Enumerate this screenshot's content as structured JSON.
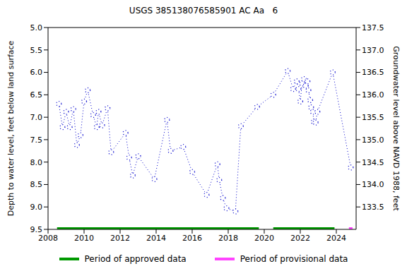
{
  "chart_data": {
    "type": "line",
    "title": "USGS 385138076585901 AC Aa   6",
    "ylabel": "Depth to water level, feet below land surface",
    "y2label": "Groundwater level above NAVD 1988, feet",
    "color": "#0000cc",
    "marker": "circle",
    "line_style": "dotted",
    "x": [
      2008.6,
      2008.8,
      2009.0,
      2009.2,
      2009.4,
      2009.6,
      2009.8,
      2010.0,
      2010.2,
      2010.5,
      2010.7,
      2010.8,
      2011.0,
      2011.3,
      2011.5,
      2012.3,
      2012.5,
      2012.7,
      2013.0,
      2013.9,
      2014.6,
      2014.8,
      2015.5,
      2016.0,
      2016.8,
      2017.4,
      2017.5,
      2017.7,
      2017.9,
      2018.4,
      2018.7,
      2019.6,
      2020.5,
      2021.3,
      2021.6,
      2021.8,
      2021.9,
      2022.0,
      2022.1,
      2022.2,
      2022.3,
      2022.4,
      2022.45,
      2022.55,
      2022.6,
      2022.7,
      2022.75,
      2022.85,
      2022.95,
      2023.8,
      2024.8
    ],
    "values": [
      6.7,
      7.22,
      6.88,
      7.22,
      6.82,
      7.62,
      7.4,
      6.65,
      6.4,
      6.95,
      7.22,
      6.88,
      7.18,
      6.8,
      7.78,
      7.35,
      7.9,
      8.3,
      7.87,
      8.38,
      7.06,
      7.75,
      7.66,
      8.22,
      8.73,
      8.05,
      8.4,
      8.8,
      9.03,
      9.1,
      7.2,
      6.77,
      6.5,
      5.97,
      6.37,
      6.2,
      6.37,
      6.65,
      6.25,
      6.15,
      6.3,
      6.2,
      6.4,
      6.62,
      6.78,
      6.88,
      7.1,
      7.12,
      6.88,
      6.0,
      8.12
    ],
    "xlim": [
      2008,
      2025.1
    ],
    "xticks": [
      2008,
      2010,
      2012,
      2014,
      2016,
      2018,
      2020,
      2022,
      2024
    ],
    "ylim": [
      5.0,
      9.5
    ],
    "yticks": [
      {
        "value": 5,
        "label": "5.0"
      },
      {
        "value": 5.5,
        "label": "5.5"
      },
      {
        "value": 6,
        "label": "6.0"
      },
      {
        "value": 6.5,
        "label": "6.5"
      },
      {
        "value": 7,
        "label": "7.0"
      },
      {
        "value": 7.5,
        "label": "7.5"
      },
      {
        "value": 8,
        "label": "8.0"
      },
      {
        "value": 8.5,
        "label": "8.5"
      },
      {
        "value": 9,
        "label": "9.0"
      },
      {
        "value": 9.5,
        "label": "9.5"
      }
    ],
    "y2lim": [
      133.0,
      137.5
    ],
    "y2ticks": [
      133.5,
      {
        "value": 134,
        "label": "134.0"
      },
      134.5,
      {
        "value": 135,
        "label": "135.0"
      },
      135.5,
      {
        "value": 136,
        "label": "136.0"
      },
      136.5,
      {
        "value": 137,
        "label": "137.0"
      },
      137.5
    ],
    "periods": [
      {
        "name": "Period of approved data",
        "color": "#009900",
        "ranges": [
          [
            2008.5,
            2019.7
          ],
          [
            2020.5,
            2023.9
          ]
        ]
      },
      {
        "name": "Period of provisional data",
        "color": "#ff44ff",
        "ranges": [
          [
            2024.7,
            2024.9
          ]
        ]
      }
    ]
  }
}
